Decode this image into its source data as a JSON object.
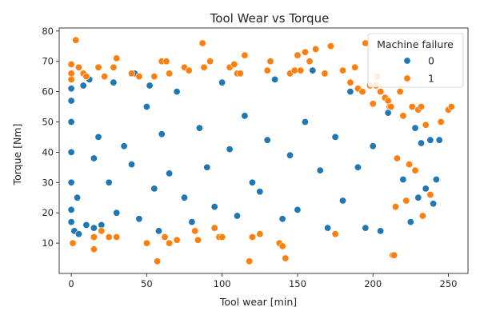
{
  "chart_data": {
    "type": "scatter",
    "title": "Tool Wear vs Torque",
    "xlabel": "Tool wear [min]",
    "ylabel": "Torque [Nm]",
    "xlim": [
      -8,
      263
    ],
    "ylim": [
      0,
      81
    ],
    "xticks": [
      0,
      50,
      100,
      150,
      200,
      250
    ],
    "yticks": [
      10,
      20,
      30,
      40,
      50,
      60,
      70,
      80
    ],
    "grid": false,
    "legend": {
      "title": "Machine failure",
      "position": "top-right"
    },
    "colors": {
      "0": "#1f77b4",
      "1": "#ff7f0e",
      "edge": "#ffffff",
      "frame": "#262626"
    },
    "series": [
      {
        "name": "0",
        "description": "Dense cloud of non-failure points spanning tool wear 0 to about 245 min and torque roughly 13 to 68 Nm; sample values shown.",
        "x": [
          0,
          0,
          0,
          0,
          0,
          0,
          0,
          0,
          2,
          4,
          5,
          8,
          10,
          12,
          15,
          15,
          18,
          20,
          25,
          28,
          30,
          35,
          40,
          42,
          45,
          50,
          52,
          55,
          58,
          60,
          65,
          70,
          75,
          80,
          85,
          90,
          95,
          100,
          105,
          110,
          115,
          120,
          125,
          130,
          135,
          140,
          145,
          150,
          155,
          160,
          165,
          170,
          175,
          180,
          185,
          190,
          195,
          200,
          205,
          210,
          215,
          220,
          225,
          228,
          230,
          232,
          235,
          238,
          240,
          242,
          244
        ],
        "y": [
          17,
          21,
          30,
          40,
          50,
          57,
          61,
          64,
          14,
          25,
          13,
          62,
          16,
          64,
          15,
          38,
          45,
          16,
          30,
          63,
          20,
          42,
          36,
          66,
          18,
          55,
          62,
          28,
          14,
          46,
          33,
          60,
          25,
          17,
          48,
          35,
          22,
          63,
          41,
          19,
          52,
          30,
          27,
          44,
          64,
          18,
          39,
          21,
          50,
          67,
          34,
          15,
          45,
          24,
          60,
          35,
          15,
          42,
          14,
          53,
          22,
          31,
          17,
          48,
          25,
          43,
          28,
          44,
          23,
          31,
          44
        ]
      },
      {
        "name": "1",
        "description": "Sparse failure points scattered along the edges of the main cloud, with a dense cluster at tool wear above about 195 min.",
        "x": [
          0,
          0,
          0,
          1,
          3,
          5,
          8,
          10,
          15,
          15,
          18,
          20,
          22,
          25,
          28,
          30,
          30,
          40,
          45,
          50,
          55,
          57,
          60,
          62,
          63,
          65,
          65,
          70,
          75,
          78,
          82,
          84,
          87,
          88,
          92,
          95,
          98,
          100,
          105,
          108,
          110,
          112,
          115,
          118,
          120,
          125,
          130,
          132,
          138,
          140,
          142,
          145,
          148,
          150,
          152,
          155,
          158,
          162,
          168,
          172,
          175,
          180,
          185,
          188,
          190,
          193,
          195,
          198,
          200,
          202,
          203,
          205,
          208,
          210,
          211,
          212,
          213,
          214,
          215,
          216,
          218,
          220,
          222,
          224,
          226,
          228,
          230,
          232,
          233,
          235,
          238,
          245,
          250,
          252
        ],
        "y": [
          64,
          66,
          69,
          10,
          77,
          68,
          66,
          65,
          8,
          12,
          68,
          14,
          65,
          12,
          68,
          71,
          12,
          66,
          65,
          10,
          65,
          4,
          70,
          12,
          70,
          66,
          10,
          11,
          68,
          67,
          14,
          11,
          76,
          68,
          70,
          15,
          12,
          12,
          68,
          69,
          66,
          66,
          72,
          4,
          12,
          13,
          67,
          70,
          10,
          9,
          5,
          66,
          67,
          72,
          67,
          73,
          70,
          74,
          66,
          75,
          13,
          67,
          63,
          68,
          61,
          60,
          76,
          62,
          56,
          62,
          65,
          60,
          58,
          57,
          55,
          55,
          6,
          6,
          22,
          38,
          60,
          52,
          24,
          36,
          55,
          34,
          54,
          55,
          19,
          49,
          26,
          50,
          54,
          55
        ]
      }
    ]
  }
}
